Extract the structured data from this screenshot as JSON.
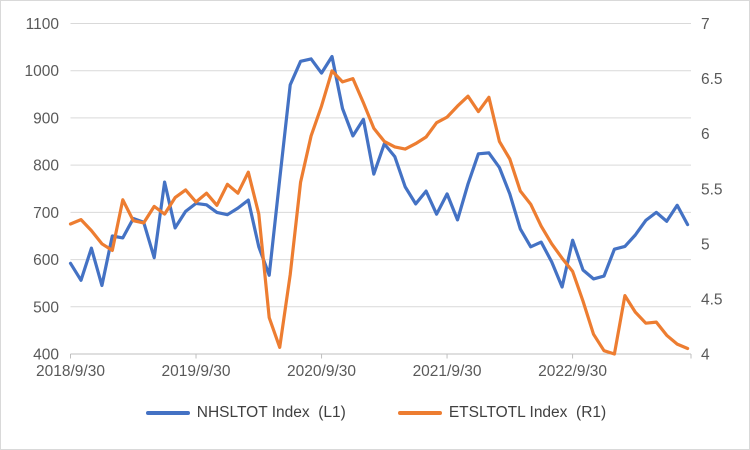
{
  "chart_data": {
    "type": "line",
    "title": "",
    "x_axis": {
      "tick_labels": [
        "2018/9/30",
        "2019/9/30",
        "2020/9/30",
        "2021/9/30",
        "2022/9/30"
      ],
      "points_per_tick": 12,
      "frequency": "monthly",
      "n_points": 60
    },
    "left_axis": {
      "min": 400,
      "max": 1100,
      "step": 100,
      "tick_labels": [
        "1100",
        "1000",
        "900",
        "800",
        "700",
        "600",
        "500",
        "400"
      ]
    },
    "right_axis": {
      "min": 4,
      "max": 7,
      "step": 0.5,
      "tick_labels": [
        "7",
        "6.5",
        "6",
        "5.5",
        "5",
        "4.5",
        "4"
      ]
    },
    "grid": "horizontal",
    "legend_position": "bottom",
    "series": [
      {
        "name": "NHSLTOT Index  (L1)",
        "axis": "left",
        "color": "#4472C4",
        "values": [
          592,
          556,
          624,
          545,
          650,
          646,
          687,
          679,
          604,
          764,
          667,
          702,
          719,
          716,
          700,
          695,
          709,
          726,
          627,
          567,
          770,
          970,
          1020,
          1025,
          995,
          1030,
          920,
          862,
          897,
          781,
          845,
          818,
          754,
          718,
          745,
          696,
          739,
          684,
          760,
          824,
          826,
          795,
          739,
          665,
          627,
          637,
          595,
          542,
          641,
          578,
          559,
          565,
          622,
          628,
          652,
          683,
          700,
          681,
          715,
          674
        ]
      },
      {
        "name": "ETSLTOTL Index  (R1)",
        "axis": "right",
        "color": "#ED7D31",
        "values": [
          5.18,
          5.22,
          5.12,
          5.0,
          4.94,
          5.4,
          5.21,
          5.19,
          5.34,
          5.27,
          5.42,
          5.49,
          5.38,
          5.46,
          5.35,
          5.54,
          5.46,
          5.65,
          5.27,
          4.33,
          4.06,
          4.72,
          5.56,
          5.98,
          6.25,
          6.57,
          6.47,
          6.5,
          6.28,
          6.05,
          5.93,
          5.88,
          5.86,
          5.91,
          5.97,
          6.1,
          6.15,
          6.25,
          6.34,
          6.2,
          6.33,
          5.93,
          5.77,
          5.48,
          5.36,
          5.16,
          5.0,
          4.87,
          4.75,
          4.48,
          4.18,
          4.03,
          4.0,
          4.53,
          4.38,
          4.28,
          4.29,
          4.17,
          4.09,
          4.05
        ]
      }
    ]
  },
  "legend": {
    "items": [
      {
        "label": "NHSLTOT Index  (L1)",
        "color": "#4472C4"
      },
      {
        "label": "ETSLTOTL Index  (R1)",
        "color": "#ED7D31"
      }
    ]
  },
  "colors": {
    "grid": "#d9d9d9",
    "axis_text": "#595959",
    "frame_border": "#d9d9d9"
  }
}
